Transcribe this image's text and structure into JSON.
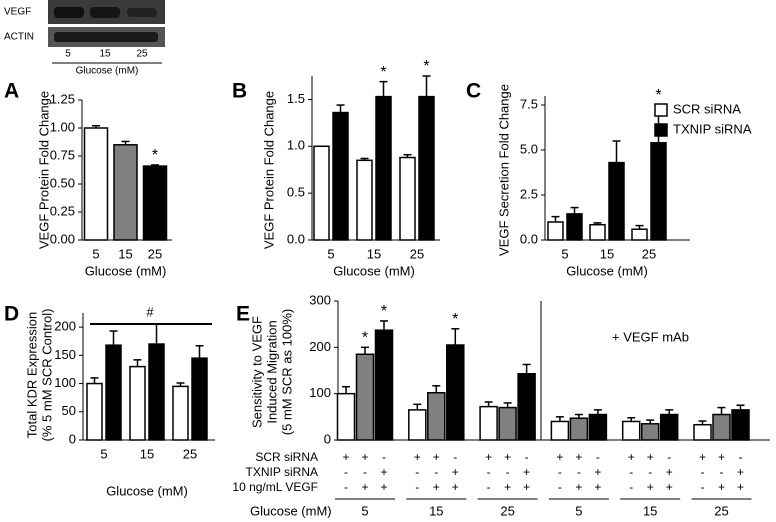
{
  "blot": {
    "rows": [
      "VEGF",
      "ACTIN"
    ],
    "lanes": [
      "5",
      "15",
      "25"
    ],
    "xlabel": "Glucose (mM)"
  },
  "chart_data": [
    {
      "type": "bar",
      "panel": "A",
      "ylabel": [
        "VEGF Protein Fold Change"
      ],
      "xlabel": "Glucose (mM)",
      "categories": [
        "5",
        "15",
        "25"
      ],
      "values": [
        1.0,
        0.85,
        0.66
      ],
      "errors": [
        0.02,
        0.03,
        0.01
      ],
      "colors": [
        "#ffffff",
        "#808080",
        "#000000"
      ],
      "significance": [
        null,
        null,
        "*"
      ],
      "ylim": [
        0,
        1.25
      ],
      "yticks": [
        {
          "value": 0,
          "label": "0.00"
        },
        0.25,
        {
          "value": 0.5,
          "label": "0.50"
        },
        0.75,
        {
          "value": 1,
          "label": "1.00"
        },
        1.25
      ]
    },
    {
      "type": "bar",
      "panel": "B",
      "ylabel": [
        "VEGF Protein Fold Change"
      ],
      "xlabel": "Glucose (mM)",
      "categories": [
        "5",
        "15",
        "25"
      ],
      "series": [
        {
          "color": "#ffffff",
          "values": [
            1.0,
            0.85,
            0.88
          ],
          "errors": [
            0,
            0.02,
            0.03
          ],
          "significance": [
            null,
            null,
            null
          ]
        },
        {
          "color": "#000000",
          "values": [
            1.36,
            1.53,
            1.53
          ],
          "errors": [
            0.08,
            0.16,
            0.22
          ],
          "significance": [
            null,
            "*",
            "*"
          ]
        }
      ],
      "ylim": [
        0,
        1.75
      ],
      "yticks": [
        {
          "value": 0,
          "label": "0.0"
        },
        0.5,
        {
          "value": 1,
          "label": "1.0"
        },
        1.5
      ]
    },
    {
      "type": "bar",
      "panel": "C",
      "ylabel": [
        "VEGF Secretion Fold Change"
      ],
      "xlabel": "Glucose (mM)",
      "categories": [
        "5",
        "15",
        "25"
      ],
      "series": [
        {
          "name": "SCR siRNA",
          "color": "#ffffff",
          "values": [
            1.0,
            0.85,
            0.6
          ],
          "errors": [
            0.3,
            0.1,
            0.2
          ],
          "significance": [
            null,
            null,
            null
          ]
        },
        {
          "name": "TXNIP siRNA",
          "color": "#000000",
          "values": [
            1.45,
            4.3,
            5.4
          ],
          "errors": [
            0.35,
            1.2,
            2.1
          ],
          "significance": [
            null,
            null,
            "*"
          ]
        }
      ],
      "ylim": [
        0,
        8
      ],
      "yticks": [
        {
          "value": 0,
          "label": "0.0"
        },
        2.5,
        {
          "value": 5,
          "label": "5.0"
        },
        7.5
      ]
    },
    {
      "type": "bar",
      "panel": "D",
      "ylabel": [
        "Total KDR Expression",
        "(% 5 mM SCR Control)"
      ],
      "xlabel": "Glucose (mM)",
      "annotation": "#",
      "categories": [
        "5",
        "15",
        "25"
      ],
      "series": [
        {
          "color": "#ffffff",
          "values": [
            100,
            130,
            95
          ],
          "errors": [
            10,
            12,
            6
          ],
          "significance": [
            null,
            null,
            null
          ]
        },
        {
          "color": "#000000",
          "values": [
            168,
            170,
            145
          ],
          "errors": [
            25,
            35,
            22
          ],
          "significance": [
            null,
            null,
            null
          ]
        }
      ],
      "ylim": [
        0,
        225
      ],
      "yticks": [
        0,
        50,
        100,
        150,
        200
      ]
    },
    {
      "type": "bar",
      "panel": "E",
      "ylabel": [
        "Sensitivity to VEGF",
        "Induced Migration",
        "(5 mM SCR as 100%)"
      ],
      "xlabel": "Glucose  (mM)",
      "annotation": "+ VEGF mAb",
      "categories": [
        "5",
        "15",
        "25",
        "5",
        "15",
        "25"
      ],
      "series": [
        {
          "color": "#ffffff",
          "values": [
            100,
            65,
            72,
            40,
            40,
            33
          ],
          "errors": [
            15,
            12,
            10,
            10,
            8,
            8
          ],
          "significance": [
            null,
            null,
            null,
            null,
            null,
            null
          ]
        },
        {
          "color": "#808080",
          "values": [
            185,
            102,
            70,
            47,
            35,
            55
          ],
          "errors": [
            15,
            15,
            10,
            8,
            8,
            15
          ],
          "significance": [
            "*",
            null,
            null,
            null,
            null,
            null
          ]
        },
        {
          "color": "#000000",
          "values": [
            237,
            205,
            143,
            55,
            55,
            65
          ],
          "errors": [
            20,
            35,
            20,
            10,
            10,
            10
          ],
          "significance": [
            "*",
            "*",
            null,
            null,
            null,
            null
          ]
        }
      ],
      "conditions": [
        {
          "label": "SCR siRNA",
          "signs": [
            "+",
            "+",
            "-",
            "+",
            "+",
            "-",
            "+",
            "+",
            "-",
            "+",
            "+",
            "-",
            "+",
            "+",
            "-",
            "+",
            "+",
            "-"
          ]
        },
        {
          "label": "TXNIP siRNA",
          "signs": [
            "-",
            "-",
            "+",
            "-",
            "-",
            "+",
            "-",
            "-",
            "+",
            "-",
            "-",
            "+",
            "-",
            "-",
            "+",
            "-",
            "-",
            "+"
          ]
        },
        {
          "label": "10 ng/mL VEGF",
          "signs": [
            "-",
            "+",
            "+",
            "-",
            "+",
            "+",
            "-",
            "+",
            "+",
            "-",
            "+",
            "+",
            "-",
            "+",
            "+",
            "-",
            "+",
            "+"
          ]
        }
      ],
      "ylim": [
        0,
        300
      ],
      "yticks": [
        0,
        100,
        200,
        300
      ]
    }
  ]
}
